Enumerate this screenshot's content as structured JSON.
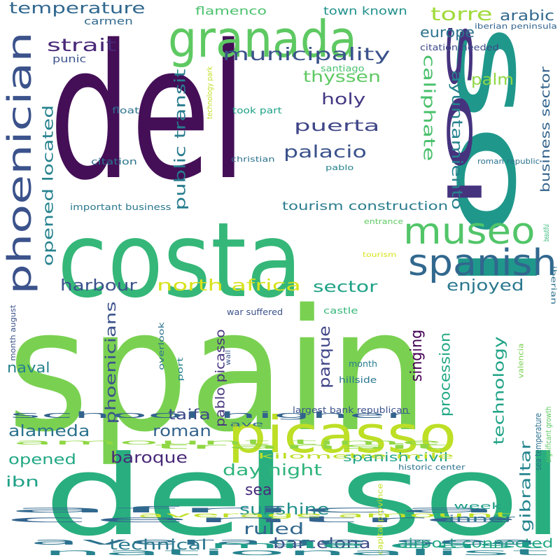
{
  "words": [
    {
      "text": "del",
      "color": "#440f57"
    },
    {
      "text": "spain",
      "color": "#7ad151"
    },
    {
      "text": "costa",
      "color": "#35b779"
    },
    {
      "text": "sol",
      "color": "#1f988b"
    },
    {
      "text": "del sol",
      "color": "#29af7f"
    },
    {
      "text": "picasso",
      "color": "#bddf26"
    },
    {
      "text": "granada",
      "color": "#5ec962"
    },
    {
      "text": "phoenician",
      "color": "#3b528b"
    },
    {
      "text": "sol",
      "color": "#46337e"
    },
    {
      "text": "museo",
      "color": "#52c569"
    },
    {
      "text": "spanish",
      "color": "#31688e"
    },
    {
      "text": "municipality",
      "color": "#3b528b"
    },
    {
      "text": "strait",
      "color": "#482878"
    },
    {
      "text": "temperature",
      "color": "#31688e"
    },
    {
      "text": "torre",
      "color": "#a0da39"
    },
    {
      "text": "europe",
      "color": "#2c728e"
    },
    {
      "text": "arabic",
      "color": "#31688e"
    },
    {
      "text": "palacio",
      "color": "#3b528b"
    },
    {
      "text": "puerta",
      "color": "#404688"
    },
    {
      "text": "holy",
      "color": "#443983"
    },
    {
      "text": "thyssen",
      "color": "#5ec962"
    },
    {
      "text": "palm",
      "color": "#8fd744"
    },
    {
      "text": "caliphate",
      "color": "#4ac16d"
    },
    {
      "text": "ayuntamiento",
      "color": "#26828e"
    },
    {
      "text": "business sector",
      "color": "#33638d"
    },
    {
      "text": "public transit",
      "color": "#287c8e"
    },
    {
      "text": "opened located",
      "color": "#26828e"
    },
    {
      "text": "tourism construction",
      "color": "#287c8e"
    },
    {
      "text": "north africa",
      "color": "#d8e219"
    },
    {
      "text": "harbour",
      "color": "#3b528b"
    },
    {
      "text": "sector",
      "color": "#1fa187"
    },
    {
      "text": "enjoyed",
      "color": "#2a788e"
    },
    {
      "text": "phoenicians",
      "color": "#3b528b"
    },
    {
      "text": "parque",
      "color": "#404688"
    },
    {
      "text": "singing",
      "color": "#440154"
    },
    {
      "text": "procession",
      "color": "#22a884"
    },
    {
      "text": "technology",
      "color": "#20a386"
    },
    {
      "text": "gibraltar",
      "color": "#25858e"
    },
    {
      "text": "pablo picasso",
      "color": "#46337e"
    },
    {
      "text": "alameda",
      "color": "#2c728e"
    },
    {
      "text": "taifa",
      "color": "#3e4989"
    },
    {
      "text": "roman",
      "color": "#33638d"
    },
    {
      "text": "baroque",
      "color": "#482878"
    },
    {
      "text": "opened",
      "color": "#22a884"
    },
    {
      "text": "ibn",
      "color": "#1fa187"
    },
    {
      "text": "naval",
      "color": "#26828e"
    },
    {
      "text": "day night",
      "color": "#2fb47c"
    },
    {
      "text": "sea",
      "color": "#472d7b"
    },
    {
      "text": "sunshine",
      "color": "#21918c"
    },
    {
      "text": "ruled",
      "color": "#31688e"
    },
    {
      "text": "spanish civil",
      "color": "#20a386"
    },
    {
      "text": "technical",
      "color": "#2a788e"
    },
    {
      "text": "barcelona",
      "color": "#3e4989"
    },
    {
      "text": "airport connected",
      "color": "#22a884"
    },
    {
      "text": "flamenco",
      "color": "#4ac16d"
    },
    {
      "text": "town known",
      "color": "#21918c"
    },
    {
      "text": "carmen",
      "color": "#31688e"
    },
    {
      "text": "punic",
      "color": "#3b528b"
    },
    {
      "text": "iberian peninsula",
      "color": "#33638d"
    },
    {
      "text": "citation needed",
      "color": "#3e4989"
    },
    {
      "text": "santiago",
      "color": "#4ac16d"
    },
    {
      "text": "float",
      "color": "#2c728e"
    },
    {
      "text": "took part",
      "color": "#1fa187"
    },
    {
      "text": "technology park",
      "color": "#c2df23"
    },
    {
      "text": "citation",
      "color": "#2c728e"
    },
    {
      "text": "christian",
      "color": "#2c728e"
    },
    {
      "text": "roman republic",
      "color": "#2c728e"
    },
    {
      "text": "pablo",
      "color": "#26828e"
    },
    {
      "text": "important business",
      "color": "#2a788e"
    },
    {
      "text": "entrance",
      "color": "#5ec962"
    },
    {
      "text": "beautiful",
      "color": "#35b779"
    },
    {
      "text": "tourism",
      "color": "#d8e219"
    },
    {
      "text": "iberian",
      "color": "#2c728e"
    },
    {
      "text": "month august",
      "color": "#3b528b"
    },
    {
      "text": "castle",
      "color": "#35b779"
    },
    {
      "text": "war suffered",
      "color": "#3b528b"
    },
    {
      "text": "overlook",
      "color": "#2c728e"
    },
    {
      "text": "wall",
      "color": "#3b528b"
    },
    {
      "text": "port",
      "color": "#26828e"
    },
    {
      "text": "month",
      "color": "#287c8e"
    },
    {
      "text": "hillside",
      "color": "#2a788e"
    },
    {
      "text": "valencia",
      "color": "#7ad151"
    },
    {
      "text": "sea temperature",
      "color": "#2c728e"
    },
    {
      "text": "school higher",
      "color": "#33638d"
    },
    {
      "text": "ave",
      "color": "#31688e"
    },
    {
      "text": "largest bank republican",
      "color": "#3b528b"
    },
    {
      "text": "significant growth",
      "color": "#5ec962"
    },
    {
      "text": "amount time",
      "color": "#8fd744"
    },
    {
      "text": "transit",
      "color": "#8fd744"
    },
    {
      "text": "kilometre mile",
      "color": "#bddf26"
    },
    {
      "text": "historic center",
      "color": "#2c728e"
    },
    {
      "text": "africa",
      "color": "#31688e"
    },
    {
      "text": "centre",
      "color": "#33638d"
    },
    {
      "text": "average amount",
      "color": "#bddf26"
    },
    {
      "text": "capital province",
      "color": "#c2df23"
    },
    {
      "text": "week",
      "color": "#1f9e89"
    },
    {
      "text": "inner",
      "color": "#2c728e"
    },
    {
      "text": "average sea",
      "color": "#2c728e"
    },
    {
      "text": "mile east",
      "color": "#1f9e89"
    },
    {
      "text": "nationalist",
      "color": "#26828e"
    }
  ]
}
